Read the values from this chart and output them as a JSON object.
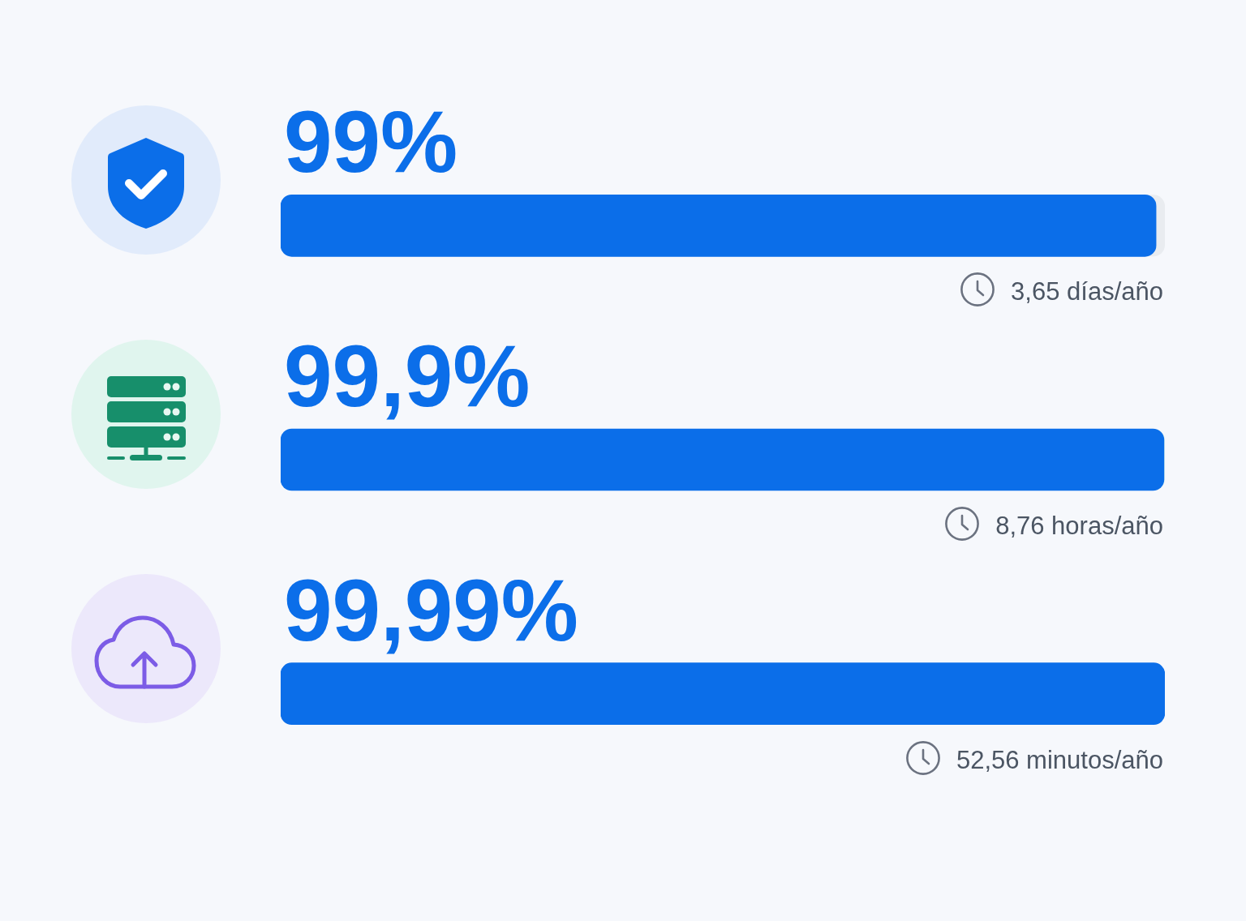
{
  "chart_data": {
    "type": "bar",
    "orientation": "horizontal",
    "categories": [
      null,
      null,
      null
    ],
    "values": [
      99,
      99.9,
      99.99
    ],
    "color": "#0b6ee9",
    "value_labels": [
      "99%",
      "99,9%",
      "99,99%"
    ],
    "annotations": [
      "3,65 días/año",
      "8,76 horas/año",
      "52,56 minutos/año"
    ],
    "xlim": [
      0,
      100
    ],
    "tick_labels": false
  }
}
